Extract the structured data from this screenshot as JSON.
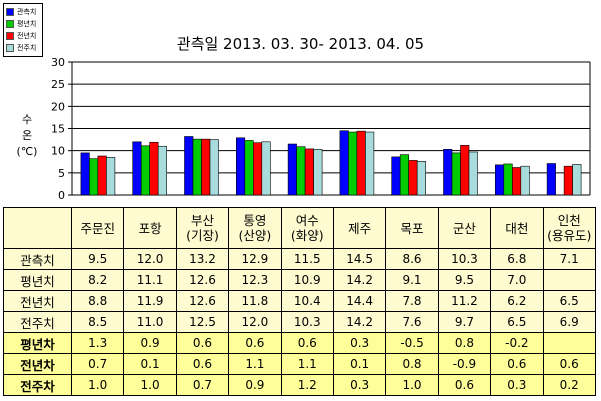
{
  "legend": [
    {
      "label": "관측치",
      "color": "#0000ff"
    },
    {
      "label": "평년치",
      "color": "#00cc00"
    },
    {
      "label": "전년치",
      "color": "#ff0000"
    },
    {
      "label": "전주치",
      "color": "#a8dcdc"
    }
  ],
  "chart_data": {
    "type": "bar",
    "title": "관측일 2013. 03. 30-  2013. 04. 05",
    "ylabel_lines": [
      "수",
      "온",
      "(℃)"
    ],
    "ylim": [
      0,
      30
    ],
    "yticks": [
      "0",
      "5",
      "10",
      "15",
      "20",
      "25",
      "30"
    ],
    "grid": true,
    "categories": [
      "주문진",
      "포항",
      "부산",
      "통영",
      "여수",
      "제주",
      "목포",
      "군산",
      "대천",
      "인천"
    ],
    "series": [
      {
        "name": "관측치",
        "color": "#0000ff",
        "values": [
          9.5,
          12.0,
          13.2,
          12.9,
          11.5,
          14.5,
          8.6,
          10.3,
          6.8,
          7.1
        ]
      },
      {
        "name": "평년치",
        "color": "#00cc00",
        "values": [
          8.2,
          11.1,
          12.6,
          12.3,
          10.9,
          14.2,
          9.1,
          9.5,
          7.0,
          null
        ]
      },
      {
        "name": "전년치",
        "color": "#ff0000",
        "values": [
          8.8,
          11.9,
          12.6,
          11.8,
          10.4,
          14.4,
          7.8,
          11.2,
          6.2,
          6.5
        ]
      },
      {
        "name": "전주치",
        "color": "#a8dcdc",
        "values": [
          8.5,
          11.0,
          12.5,
          12.0,
          10.3,
          14.2,
          7.6,
          9.7,
          6.5,
          6.9
        ]
      }
    ]
  },
  "table": {
    "columns": [
      [
        "주문진"
      ],
      [
        "포항"
      ],
      [
        "부산",
        "(기장)"
      ],
      [
        "통영",
        "(산양)"
      ],
      [
        "여수",
        "(화양)"
      ],
      [
        "제주"
      ],
      [
        "목포"
      ],
      [
        "군산"
      ],
      [
        "대천"
      ],
      [
        "인천",
        "(용유도)"
      ]
    ],
    "rows": [
      {
        "label": "관측치",
        "cells": [
          "9.5",
          "12.0",
          "13.2",
          "12.9",
          "11.5",
          "14.5",
          "8.6",
          "10.3",
          "6.8",
          "7.1"
        ]
      },
      {
        "label": "평년치",
        "cells": [
          "8.2",
          "11.1",
          "12.6",
          "12.3",
          "10.9",
          "14.2",
          "9.1",
          "9.5",
          "7.0",
          ""
        ]
      },
      {
        "label": "전년치",
        "cells": [
          "8.8",
          "11.9",
          "12.6",
          "11.8",
          "10.4",
          "14.4",
          "7.8",
          "11.2",
          "6.2",
          "6.5"
        ]
      },
      {
        "label": "전주치",
        "cells": [
          "8.5",
          "11.0",
          "12.5",
          "12.0",
          "10.3",
          "14.2",
          "7.6",
          "9.7",
          "6.5",
          "6.9"
        ]
      }
    ],
    "diff_rows": [
      {
        "label": "평년차",
        "cells": [
          "1.3",
          "0.9",
          "0.6",
          "0.6",
          "0.6",
          "0.3",
          "-0.5",
          "0.8",
          "-0.2",
          ""
        ]
      },
      {
        "label": "전년차",
        "cells": [
          "0.7",
          "0.1",
          "0.6",
          "1.1",
          "1.1",
          "0.1",
          "0.8",
          "-0.9",
          "0.6",
          "0.6"
        ]
      },
      {
        "label": "전주차",
        "cells": [
          "1.0",
          "1.0",
          "0.7",
          "0.9",
          "1.2",
          "0.3",
          "1.0",
          "0.6",
          "0.3",
          "0.2"
        ]
      }
    ]
  }
}
